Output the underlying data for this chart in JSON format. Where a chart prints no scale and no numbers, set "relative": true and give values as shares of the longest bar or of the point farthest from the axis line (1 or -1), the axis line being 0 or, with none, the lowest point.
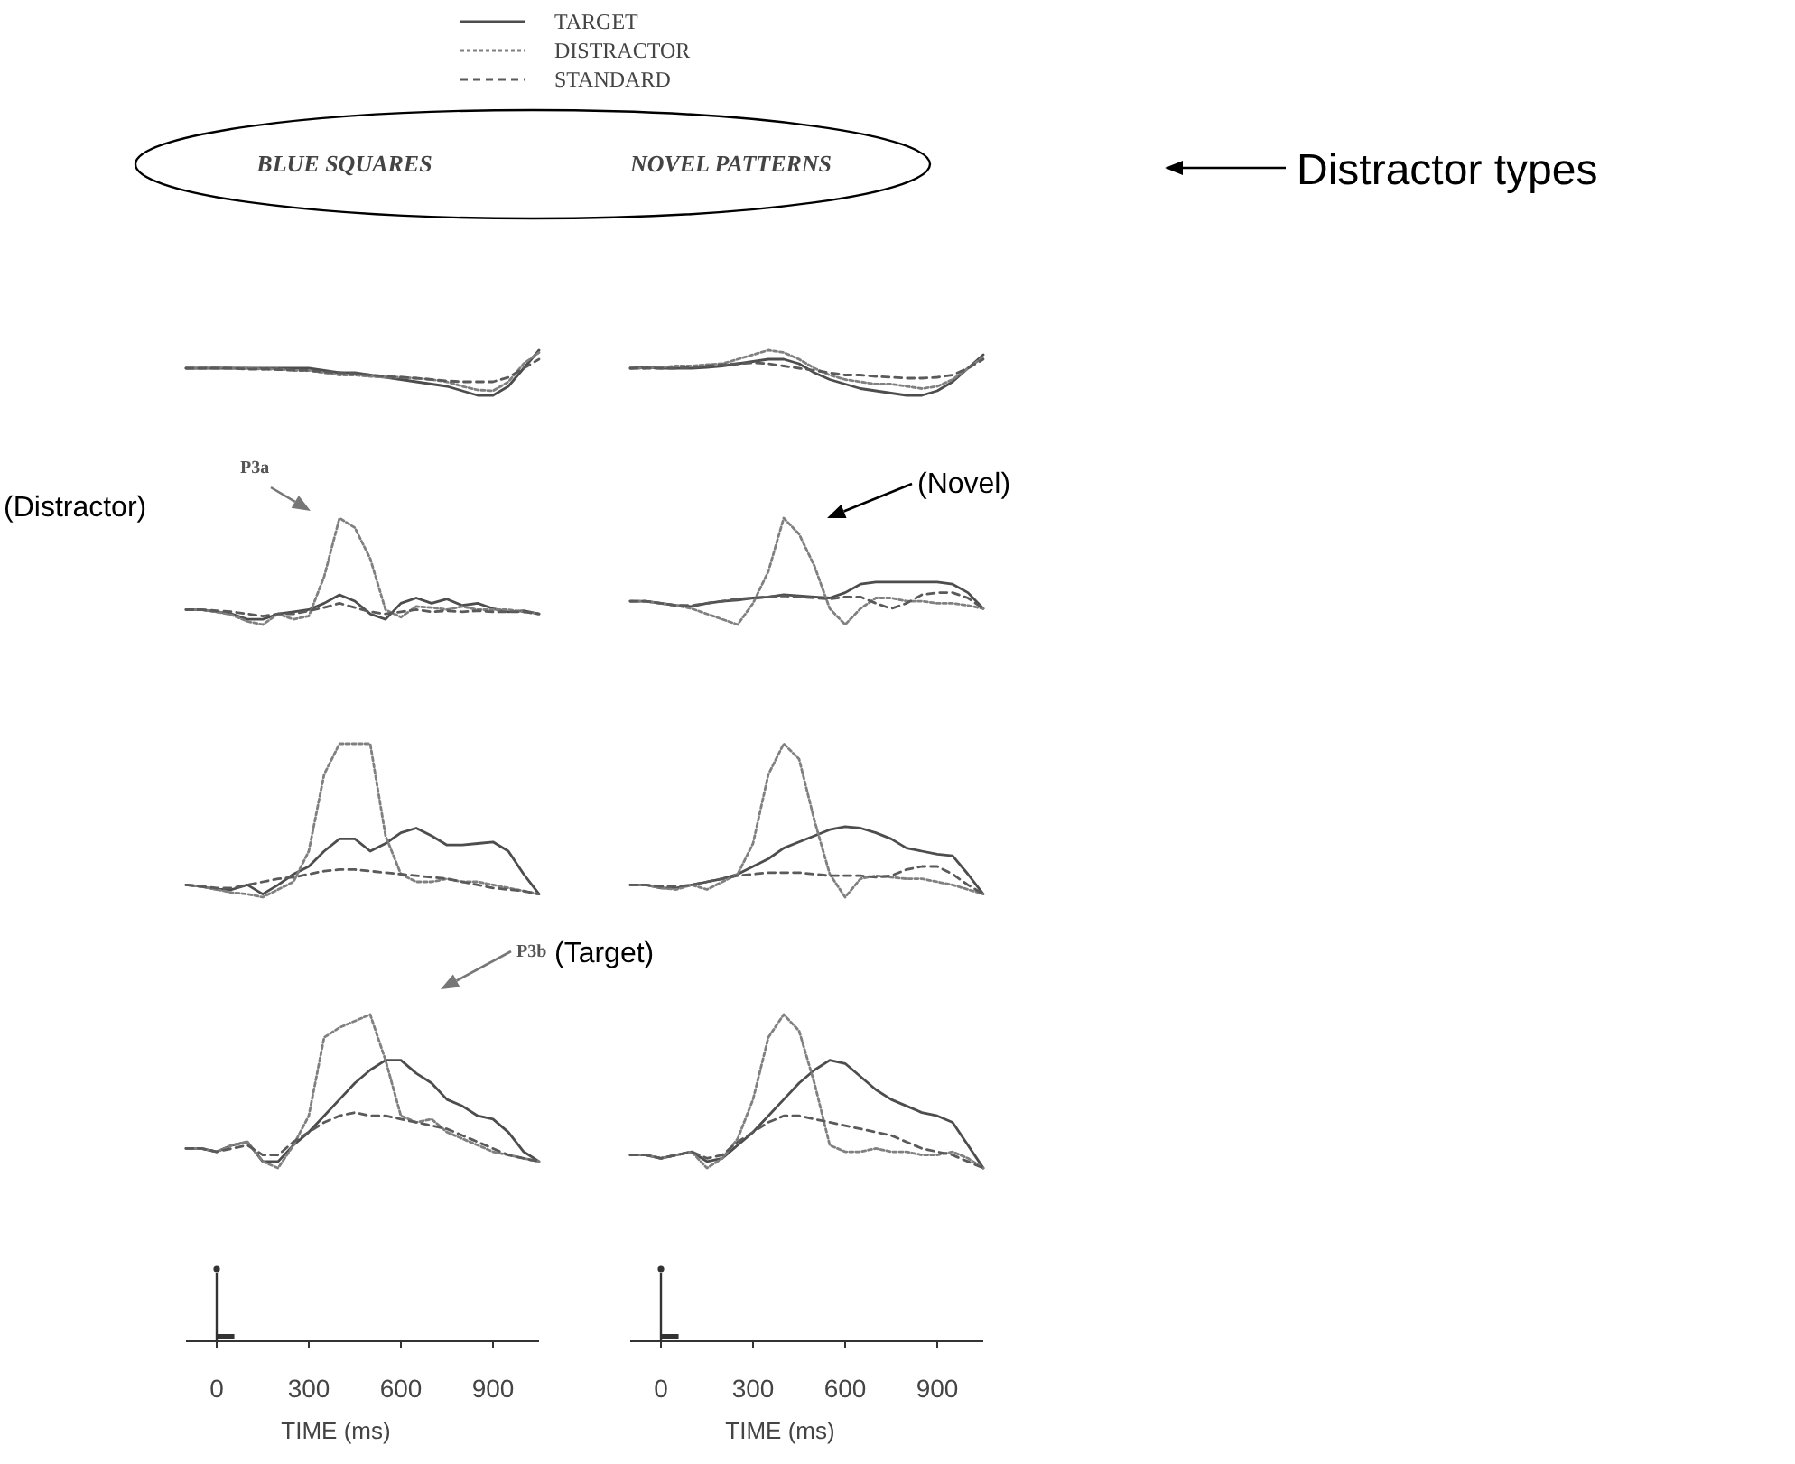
{
  "chart_data": [
    {
      "type": "line",
      "title": "BLUE SQUARES",
      "legend": "top",
      "relative": true,
      "tick_labels": false,
      "x": [
        -100,
        -50,
        0,
        50,
        100,
        150,
        200,
        250,
        300,
        350,
        400,
        450,
        500,
        550,
        600,
        650,
        700,
        750,
        800,
        850,
        900,
        950,
        1000,
        1050
      ],
      "series": [
        {
          "name": "TARGET",
          "color": "#4d4d4d",
          "line_style": "solid",
          "values": [
            0.6,
            0.6,
            0.6,
            0.6,
            0.6,
            0.6,
            0.6,
            0.6,
            0.6,
            0.55,
            0.5,
            0.5,
            0.45,
            0.4,
            0.35,
            0.3,
            0.25,
            0.2,
            0.1,
            0,
            0,
            0.2,
            0.6,
            1
          ]
        },
        {
          "name": "DISTRACTOR",
          "color": "#808080",
          "line_style": "dotted",
          "values": [
            0.6,
            0.6,
            0.62,
            0.6,
            0.6,
            0.58,
            0.58,
            0.55,
            0.55,
            0.5,
            0.45,
            0.45,
            0.42,
            0.4,
            0.4,
            0.38,
            0.35,
            0.3,
            0.2,
            0.12,
            0.1,
            0.3,
            0.7,
            0.95
          ]
        },
        {
          "name": "STANDARD",
          "color": "#5a5a5a",
          "line_style": "dashed",
          "values": [
            0.6,
            0.6,
            0.6,
            0.6,
            0.58,
            0.58,
            0.57,
            0.56,
            0.55,
            0.52,
            0.5,
            0.48,
            0.45,
            0.42,
            0.4,
            0.38,
            0.35,
            0.32,
            0.3,
            0.3,
            0.3,
            0.4,
            0.6,
            0.8
          ]
        }
      ]
    },
    {
      "type": "line",
      "title": "NOVEL PATTERNS",
      "relative": true,
      "tick_labels": false,
      "annotations": [
        "Distractor types"
      ],
      "x": [
        -100,
        -50,
        0,
        50,
        100,
        150,
        200,
        250,
        300,
        350,
        400,
        450,
        500,
        550,
        600,
        650,
        700,
        750,
        800,
        850,
        900,
        950,
        1000,
        1050
      ],
      "series": [
        {
          "color": "#4d4d4d",
          "line_style": "solid",
          "values": [
            0.6,
            0.62,
            0.6,
            0.6,
            0.6,
            0.62,
            0.65,
            0.7,
            0.75,
            0.8,
            0.8,
            0.7,
            0.5,
            0.35,
            0.25,
            0.15,
            0.1,
            0.05,
            0,
            0,
            0.1,
            0.3,
            0.6,
            0.9
          ]
        },
        {
          "color": "#808080",
          "line_style": "dotted",
          "values": [
            0.6,
            0.6,
            0.62,
            0.65,
            0.65,
            0.68,
            0.7,
            0.8,
            0.9,
            1,
            0.95,
            0.8,
            0.6,
            0.45,
            0.35,
            0.3,
            0.25,
            0.25,
            0.2,
            0.15,
            0.2,
            0.35,
            0.6,
            0.85
          ]
        },
        {
          "color": "#5a5a5a",
          "line_style": "dashed",
          "values": [
            0.6,
            0.6,
            0.6,
            0.6,
            0.62,
            0.65,
            0.68,
            0.7,
            0.72,
            0.7,
            0.65,
            0.6,
            0.55,
            0.5,
            0.45,
            0.45,
            0.42,
            0.4,
            0.38,
            0.38,
            0.4,
            0.45,
            0.6,
            0.8
          ]
        }
      ]
    },
    {
      "type": "line",
      "relative": true,
      "tick_labels": false,
      "annotations": [
        "P3a",
        "(Distractor)"
      ],
      "x": [
        -100,
        -50,
        0,
        50,
        100,
        150,
        200,
        250,
        300,
        350,
        400,
        450,
        500,
        550,
        600,
        650,
        700,
        750,
        800,
        850,
        900,
        950,
        1000,
        1050
      ],
      "series": [
        {
          "color": "#4d4d4d",
          "line_style": "solid",
          "values": [
            0.14,
            0.14,
            0.12,
            0.1,
            0.05,
            0.05,
            0.1,
            0.12,
            0.14,
            0.2,
            0.28,
            0.22,
            0.1,
            0.05,
            0.2,
            0.25,
            0.2,
            0.24,
            0.18,
            0.2,
            0.15,
            0.12,
            0.13,
            0.1
          ]
        },
        {
          "color": "#808080",
          "line_style": "dotted",
          "values": [
            0.14,
            0.14,
            0.12,
            0.09,
            0.03,
            0,
            0.1,
            0.05,
            0.08,
            0.45,
            1,
            0.91,
            0.62,
            0.14,
            0.07,
            0.17,
            0.16,
            0.14,
            0.17,
            0.14,
            0.14,
            0.14,
            0.12,
            0.1
          ]
        },
        {
          "color": "#5a5a5a",
          "line_style": "dashed",
          "values": [
            0.14,
            0.14,
            0.13,
            0.12,
            0.1,
            0.08,
            0.1,
            0.1,
            0.13,
            0.16,
            0.2,
            0.16,
            0.12,
            0.1,
            0.12,
            0.14,
            0.12,
            0.13,
            0.12,
            0.13,
            0.12,
            0.12,
            0.12,
            0.1
          ]
        }
      ]
    },
    {
      "type": "line",
      "relative": true,
      "tick_labels": false,
      "annotations": [
        "(Novel)"
      ],
      "x": [
        -100,
        -50,
        0,
        50,
        100,
        150,
        200,
        250,
        300,
        350,
        400,
        450,
        500,
        550,
        600,
        650,
        700,
        750,
        800,
        850,
        900,
        950,
        1000,
        1050
      ],
      "series": [
        {
          "color": "#4d4d4d",
          "line_style": "solid",
          "values": [
            0.22,
            0.22,
            0.2,
            0.18,
            0.17,
            0.2,
            0.22,
            0.23,
            0.25,
            0.26,
            0.28,
            0.27,
            0.26,
            0.25,
            0.3,
            0.38,
            0.4,
            0.4,
            0.4,
            0.4,
            0.4,
            0.38,
            0.3,
            0.15
          ]
        },
        {
          "color": "#808080",
          "line_style": "dotted",
          "values": [
            0.22,
            0.22,
            0.2,
            0.18,
            0.15,
            0.1,
            0.05,
            0,
            0.2,
            0.5,
            1,
            0.85,
            0.55,
            0.15,
            0,
            0.15,
            0.25,
            0.25,
            0.22,
            0.22,
            0.2,
            0.2,
            0.18,
            0.15
          ]
        },
        {
          "color": "#5a5a5a",
          "line_style": "dashed",
          "values": [
            0.22,
            0.22,
            0.2,
            0.18,
            0.18,
            0.2,
            0.22,
            0.24,
            0.25,
            0.26,
            0.27,
            0.26,
            0.25,
            0.24,
            0.26,
            0.26,
            0.2,
            0.15,
            0.2,
            0.28,
            0.3,
            0.3,
            0.25,
            0.15
          ]
        }
      ]
    },
    {
      "type": "line",
      "relative": true,
      "tick_labels": false,
      "x": [
        -100,
        -50,
        0,
        50,
        100,
        150,
        200,
        250,
        300,
        350,
        400,
        450,
        500,
        550,
        600,
        650,
        700,
        750,
        800,
        850,
        900,
        950,
        1000,
        1050
      ],
      "series": [
        {
          "color": "#4d4d4d",
          "line_style": "solid",
          "values": [
            0.08,
            0.07,
            0.05,
            0.05,
            0.08,
            0.02,
            0.08,
            0.15,
            0.2,
            0.3,
            0.38,
            0.38,
            0.3,
            0.35,
            0.42,
            0.45,
            0.4,
            0.34,
            0.34,
            0.35,
            0.36,
            0.3,
            0.15,
            0.02
          ]
        },
        {
          "color": "#808080",
          "line_style": "dotted",
          "values": [
            0.08,
            0.07,
            0.05,
            0.03,
            0.02,
            0,
            0.05,
            0.1,
            0.3,
            0.8,
            1,
            1,
            1,
            0.4,
            0.15,
            0.1,
            0.1,
            0.12,
            0.1,
            0.1,
            0.08,
            0.06,
            0.04,
            0.02
          ]
        },
        {
          "color": "#5a5a5a",
          "line_style": "dashed",
          "values": [
            0.08,
            0.07,
            0.06,
            0.06,
            0.08,
            0.1,
            0.12,
            0.13,
            0.15,
            0.17,
            0.18,
            0.18,
            0.17,
            0.16,
            0.15,
            0.14,
            0.13,
            0.12,
            0.1,
            0.08,
            0.06,
            0.05,
            0.04,
            0.02
          ]
        }
      ]
    },
    {
      "type": "line",
      "relative": true,
      "tick_labels": false,
      "x": [
        -100,
        -50,
        0,
        50,
        100,
        150,
        200,
        250,
        300,
        350,
        400,
        450,
        500,
        550,
        600,
        650,
        700,
        750,
        800,
        850,
        900,
        950,
        1000,
        1050
      ],
      "series": [
        {
          "color": "#4d4d4d",
          "line_style": "solid",
          "values": [
            0.08,
            0.08,
            0.06,
            0.06,
            0.08,
            0.1,
            0.12,
            0.15,
            0.2,
            0.25,
            0.32,
            0.36,
            0.4,
            0.44,
            0.46,
            0.45,
            0.42,
            0.38,
            0.32,
            0.3,
            0.28,
            0.27,
            0.15,
            0.02
          ]
        },
        {
          "color": "#808080",
          "line_style": "dotted",
          "values": [
            0.08,
            0.08,
            0.06,
            0.05,
            0.08,
            0.05,
            0.1,
            0.15,
            0.35,
            0.8,
            1,
            0.9,
            0.5,
            0.15,
            0,
            0.12,
            0.14,
            0.13,
            0.12,
            0.12,
            0.1,
            0.08,
            0.05,
            0.02
          ]
        },
        {
          "color": "#5a5a5a",
          "line_style": "dashed",
          "values": [
            0.08,
            0.08,
            0.07,
            0.07,
            0.08,
            0.1,
            0.12,
            0.14,
            0.15,
            0.16,
            0.16,
            0.16,
            0.15,
            0.14,
            0.14,
            0.14,
            0.13,
            0.14,
            0.18,
            0.2,
            0.2,
            0.15,
            0.08,
            0.02
          ]
        }
      ]
    },
    {
      "type": "line",
      "relative": true,
      "tick_labels": "x",
      "xlim": [
        -100,
        1050
      ],
      "xticks": [
        0,
        300,
        600,
        900
      ],
      "xlabel": "TIME (ms)",
      "annotations": [
        "P3b",
        "(Target)"
      ],
      "x": [
        -100,
        -50,
        0,
        50,
        100,
        150,
        200,
        250,
        300,
        350,
        400,
        450,
        500,
        550,
        600,
        650,
        700,
        750,
        800,
        850,
        900,
        950,
        1000,
        1050
      ],
      "series": [
        {
          "color": "#4d4d4d",
          "line_style": "solid",
          "values": [
            0.59,
            0.59,
            0.58,
            0.6,
            0.61,
            0.55,
            0.55,
            0.6,
            0.64,
            0.69,
            0.74,
            0.79,
            0.83,
            0.86,
            0.86,
            0.82,
            0.79,
            0.74,
            0.72,
            0.69,
            0.68,
            0.64,
            0.58,
            0.55
          ]
        },
        {
          "color": "#808080",
          "line_style": "dotted",
          "values": [
            0.59,
            0.59,
            0.58,
            0.6,
            0.61,
            0.55,
            0.53,
            0.6,
            0.69,
            0.93,
            0.96,
            0.98,
            1,
            0.86,
            0.69,
            0.67,
            0.68,
            0.64,
            0.62,
            0.6,
            0.58,
            0.57,
            0.56,
            0.55
          ]
        },
        {
          "color": "#5a5a5a",
          "line_style": "dashed",
          "values": [
            0.59,
            0.59,
            0.58,
            0.59,
            0.6,
            0.57,
            0.57,
            0.61,
            0.64,
            0.67,
            0.69,
            0.7,
            0.69,
            0.69,
            0.68,
            0.67,
            0.66,
            0.65,
            0.63,
            0.61,
            0.59,
            0.57,
            0.56,
            0.55
          ]
        }
      ]
    },
    {
      "type": "line",
      "relative": true,
      "tick_labels": "x",
      "xlim": [
        -100,
        1050
      ],
      "xticks": [
        0,
        300,
        600,
        900
      ],
      "xlabel": "TIME (ms)",
      "x": [
        -100,
        -50,
        0,
        50,
        100,
        150,
        200,
        250,
        300,
        350,
        400,
        450,
        500,
        550,
        600,
        650,
        700,
        750,
        800,
        850,
        900,
        950,
        1000,
        1050
      ],
      "series": [
        {
          "color": "#4d4d4d",
          "line_style": "solid",
          "values": [
            0.57,
            0.57,
            0.56,
            0.57,
            0.58,
            0.55,
            0.56,
            0.6,
            0.64,
            0.69,
            0.74,
            0.79,
            0.83,
            0.86,
            0.85,
            0.81,
            0.77,
            0.74,
            0.72,
            0.7,
            0.69,
            0.67,
            0.6,
            0.53
          ]
        },
        {
          "color": "#808080",
          "line_style": "dotted",
          "values": [
            0.57,
            0.57,
            0.56,
            0.57,
            0.58,
            0.53,
            0.56,
            0.62,
            0.74,
            0.93,
            1,
            0.95,
            0.79,
            0.6,
            0.58,
            0.58,
            0.59,
            0.58,
            0.58,
            0.57,
            0.57,
            0.58,
            0.56,
            0.53
          ]
        },
        {
          "color": "#5a5a5a",
          "line_style": "dashed",
          "values": [
            0.57,
            0.57,
            0.56,
            0.57,
            0.58,
            0.56,
            0.57,
            0.61,
            0.64,
            0.67,
            0.69,
            0.69,
            0.68,
            0.67,
            0.66,
            0.65,
            0.64,
            0.63,
            0.61,
            0.59,
            0.58,
            0.57,
            0.55,
            0.53
          ]
        }
      ]
    }
  ]
}
